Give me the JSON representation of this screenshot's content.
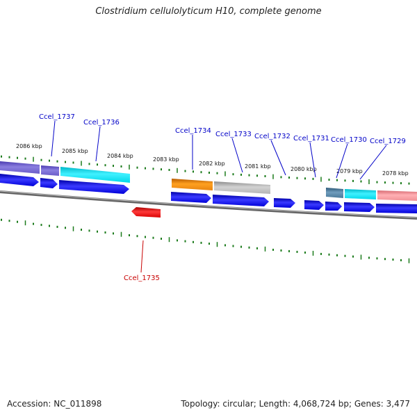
{
  "title": "Clostridium cellulolyticum H10, complete genome",
  "footer": {
    "accession": "Accession: NC_011898",
    "topology": "Topology: circular; Length: 4,068,724 bp; Genes: 3,477"
  },
  "kbp_labels": [
    "2086 kbp",
    "2085 kbp",
    "2084 kbp",
    "2083 kbp",
    "2082 kbp",
    "2081 kbp",
    "2080 kbp",
    "2079 kbp",
    "2078 kbp"
  ],
  "gene_labels": [
    "Ccel_1737",
    "Ccel_1736",
    "Ccel_1734",
    "Ccel_1733",
    "Ccel_1732",
    "Ccel_1731",
    "Ccel_1730",
    "Ccel_1729",
    "Ccel_1735"
  ],
  "colors": {
    "label_forward": "#0000c8",
    "label_reverse": "#c80000",
    "cds_blue": "#0000e6",
    "cds_red": "#e60000",
    "tick_green": "#1a7a1a",
    "backbone": "#808080"
  }
}
